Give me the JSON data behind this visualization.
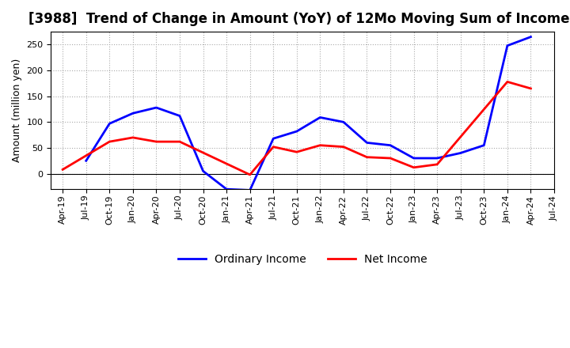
{
  "title": "[3988]  Trend of Change in Amount (YoY) of 12Mo Moving Sum of Incomes",
  "ylabel": "Amount (million yen)",
  "x_labels": [
    "Apr-19",
    "Jul-19",
    "Oct-19",
    "Jan-20",
    "Apr-20",
    "Jul-20",
    "Oct-20",
    "Jan-21",
    "Apr-21",
    "Jul-21",
    "Oct-21",
    "Jan-22",
    "Apr-22",
    "Jul-22",
    "Oct-22",
    "Jan-23",
    "Apr-23",
    "Jul-23",
    "Oct-23",
    "Jan-24",
    "Apr-24",
    "Jul-24"
  ],
  "oi_x": [
    1,
    2,
    3,
    4,
    5,
    6,
    7,
    8,
    9,
    10,
    11,
    12,
    13,
    14,
    15,
    16,
    17,
    18,
    19,
    20
  ],
  "oi_y": [
    25,
    97,
    117,
    128,
    112,
    5,
    -30,
    -32,
    68,
    82,
    109,
    100,
    60,
    55,
    30,
    30,
    40,
    55,
    248,
    265
  ],
  "ni_x": [
    0,
    2,
    3,
    4,
    5,
    8,
    9,
    10,
    11,
    12,
    13,
    14,
    15,
    16,
    19,
    20
  ],
  "ni_y": [
    8,
    62,
    70,
    62,
    62,
    -2,
    52,
    42,
    55,
    52,
    32,
    30,
    12,
    18,
    178,
    165
  ],
  "line_color_ordinary": "#0000FF",
  "line_color_net": "#FF0000",
  "line_width": 2.0,
  "ylim_low": -30,
  "ylim_high": 275,
  "yticks": [
    0,
    50,
    100,
    150,
    200,
    250
  ],
  "background_color": "#FFFFFF",
  "grid_color": "#AAAAAA",
  "title_fontsize": 12,
  "axis_fontsize": 9,
  "tick_fontsize": 8,
  "legend_fontsize": 10
}
